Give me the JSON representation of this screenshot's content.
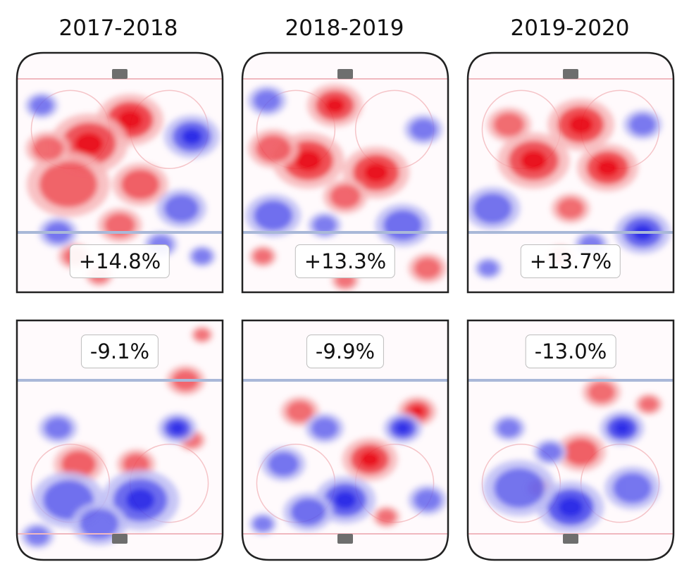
{
  "chart_data": {
    "type": "heatmap",
    "columns": [
      "2017-2018",
      "2018-2019",
      "2019-2020"
    ],
    "rows": [
      {
        "row": "top",
        "values": [
          "+14.8%",
          "+13.3%",
          "+13.7%"
        ]
      },
      {
        "row": "bottom",
        "values": [
          "-9.1%",
          "-9.9%",
          "-13.0%"
        ]
      }
    ],
    "colors": {
      "positive": "#e8000b",
      "positive_light": "#f7b3b5",
      "negative": "#1a1ae6",
      "negative_light": "#b8b8f5",
      "blue_line": "#a9b8d8",
      "goal_line": "#f0b8bf",
      "faceoff_circle": "#f5c4c8",
      "net": "#6e6e6e",
      "board": "#222222"
    },
    "blobs": [
      [
        {
          "x": 0.55,
          "y": 0.28,
          "r": 0.12,
          "s": 1.0
        },
        {
          "x": 0.35,
          "y": 0.38,
          "r": 0.14,
          "s": 0.8
        },
        {
          "x": 0.25,
          "y": 0.55,
          "r": 0.15,
          "s": 0.55
        },
        {
          "x": 0.6,
          "y": 0.55,
          "r": 0.1,
          "s": 0.6
        },
        {
          "x": 0.5,
          "y": 0.72,
          "r": 0.08,
          "s": 0.45
        },
        {
          "x": 0.15,
          "y": 0.4,
          "r": 0.08,
          "s": 0.4
        },
        {
          "x": 0.28,
          "y": 0.85,
          "r": 0.06,
          "s": 0.35
        },
        {
          "x": 0.4,
          "y": 0.93,
          "r": 0.05,
          "s": 0.3
        },
        {
          "x": 0.85,
          "y": 0.35,
          "r": 0.1,
          "s": -0.7
        },
        {
          "x": 0.8,
          "y": 0.65,
          "r": 0.09,
          "s": -0.55
        },
        {
          "x": 0.2,
          "y": 0.75,
          "r": 0.07,
          "s": -0.5
        },
        {
          "x": 0.12,
          "y": 0.22,
          "r": 0.06,
          "s": -0.4
        },
        {
          "x": 0.9,
          "y": 0.85,
          "r": 0.05,
          "s": -0.35
        },
        {
          "x": 0.7,
          "y": 0.8,
          "r": 0.06,
          "s": -0.3
        }
      ],
      [
        {
          "x": 0.45,
          "y": 0.22,
          "r": 0.1,
          "s": 0.8
        },
        {
          "x": 0.32,
          "y": 0.45,
          "r": 0.13,
          "s": 0.9
        },
        {
          "x": 0.65,
          "y": 0.5,
          "r": 0.12,
          "s": 0.9
        },
        {
          "x": 0.15,
          "y": 0.4,
          "r": 0.09,
          "s": 0.5
        },
        {
          "x": 0.5,
          "y": 0.6,
          "r": 0.08,
          "s": 0.5
        },
        {
          "x": 0.9,
          "y": 0.9,
          "r": 0.07,
          "s": 0.4
        },
        {
          "x": 0.5,
          "y": 0.95,
          "r": 0.05,
          "s": 0.3
        },
        {
          "x": 0.1,
          "y": 0.85,
          "r": 0.05,
          "s": 0.35
        },
        {
          "x": 0.15,
          "y": 0.68,
          "r": 0.1,
          "s": -0.6
        },
        {
          "x": 0.78,
          "y": 0.72,
          "r": 0.1,
          "s": -0.6
        },
        {
          "x": 0.88,
          "y": 0.32,
          "r": 0.07,
          "s": -0.4
        },
        {
          "x": 0.12,
          "y": 0.2,
          "r": 0.07,
          "s": -0.4
        },
        {
          "x": 0.4,
          "y": 0.72,
          "r": 0.06,
          "s": -0.35
        }
      ],
      [
        {
          "x": 0.55,
          "y": 0.3,
          "r": 0.12,
          "s": 0.9
        },
        {
          "x": 0.32,
          "y": 0.45,
          "r": 0.13,
          "s": 0.8
        },
        {
          "x": 0.68,
          "y": 0.48,
          "r": 0.11,
          "s": 0.9
        },
        {
          "x": 0.2,
          "y": 0.3,
          "r": 0.08,
          "s": 0.4
        },
        {
          "x": 0.5,
          "y": 0.65,
          "r": 0.07,
          "s": 0.4
        },
        {
          "x": 0.45,
          "y": 0.85,
          "r": 0.05,
          "s": 0.3
        },
        {
          "x": 0.85,
          "y": 0.75,
          "r": 0.1,
          "s": -0.7
        },
        {
          "x": 0.12,
          "y": 0.65,
          "r": 0.1,
          "s": -0.55
        },
        {
          "x": 0.85,
          "y": 0.3,
          "r": 0.07,
          "s": -0.4
        },
        {
          "x": 0.6,
          "y": 0.8,
          "r": 0.06,
          "s": -0.35
        },
        {
          "x": 0.1,
          "y": 0.9,
          "r": 0.05,
          "s": -0.3
        }
      ],
      [
        {
          "x": 0.3,
          "y": 0.6,
          "r": 0.09,
          "s": 0.6
        },
        {
          "x": 0.58,
          "y": 0.6,
          "r": 0.07,
          "s": 0.5
        },
        {
          "x": 0.82,
          "y": 0.25,
          "r": 0.07,
          "s": 0.5
        },
        {
          "x": 0.9,
          "y": 0.06,
          "r": 0.04,
          "s": 0.3
        },
        {
          "x": 0.85,
          "y": 0.5,
          "r": 0.05,
          "s": 0.3
        },
        {
          "x": 0.78,
          "y": 0.45,
          "r": 0.07,
          "s": -0.9
        },
        {
          "x": 0.25,
          "y": 0.75,
          "r": 0.13,
          "s": -0.6
        },
        {
          "x": 0.6,
          "y": 0.75,
          "r": 0.14,
          "s": -0.65
        },
        {
          "x": 0.4,
          "y": 0.85,
          "r": 0.1,
          "s": -0.5
        },
        {
          "x": 0.2,
          "y": 0.45,
          "r": 0.07,
          "s": -0.4
        },
        {
          "x": 0.1,
          "y": 0.9,
          "r": 0.06,
          "s": -0.35
        }
      ],
      [
        {
          "x": 0.62,
          "y": 0.58,
          "r": 0.1,
          "s": 0.85
        },
        {
          "x": 0.85,
          "y": 0.38,
          "r": 0.07,
          "s": 0.65
        },
        {
          "x": 0.28,
          "y": 0.38,
          "r": 0.07,
          "s": 0.4
        },
        {
          "x": 0.7,
          "y": 0.82,
          "r": 0.05,
          "s": 0.35
        },
        {
          "x": 0.78,
          "y": 0.45,
          "r": 0.07,
          "s": -0.85
        },
        {
          "x": 0.5,
          "y": 0.75,
          "r": 0.11,
          "s": -0.8
        },
        {
          "x": 0.32,
          "y": 0.8,
          "r": 0.09,
          "s": -0.6
        },
        {
          "x": 0.2,
          "y": 0.6,
          "r": 0.08,
          "s": -0.5
        },
        {
          "x": 0.4,
          "y": 0.45,
          "r": 0.07,
          "s": -0.4
        },
        {
          "x": 0.9,
          "y": 0.75,
          "r": 0.07,
          "s": -0.4
        },
        {
          "x": 0.1,
          "y": 0.85,
          "r": 0.05,
          "s": -0.35
        }
      ],
      [
        {
          "x": 0.55,
          "y": 0.55,
          "r": 0.09,
          "s": 0.6
        },
        {
          "x": 0.65,
          "y": 0.3,
          "r": 0.07,
          "s": 0.4
        },
        {
          "x": 0.88,
          "y": 0.35,
          "r": 0.05,
          "s": 0.35
        },
        {
          "x": 0.35,
          "y": 0.7,
          "r": 0.05,
          "s": 0.35
        },
        {
          "x": 0.75,
          "y": 0.45,
          "r": 0.08,
          "s": -1.0
        },
        {
          "x": 0.5,
          "y": 0.78,
          "r": 0.12,
          "s": -0.95
        },
        {
          "x": 0.25,
          "y": 0.7,
          "r": 0.13,
          "s": -0.55
        },
        {
          "x": 0.8,
          "y": 0.7,
          "r": 0.1,
          "s": -0.5
        },
        {
          "x": 0.4,
          "y": 0.55,
          "r": 0.06,
          "s": -0.4
        },
        {
          "x": 0.2,
          "y": 0.45,
          "r": 0.06,
          "s": -0.35
        }
      ]
    ]
  }
}
